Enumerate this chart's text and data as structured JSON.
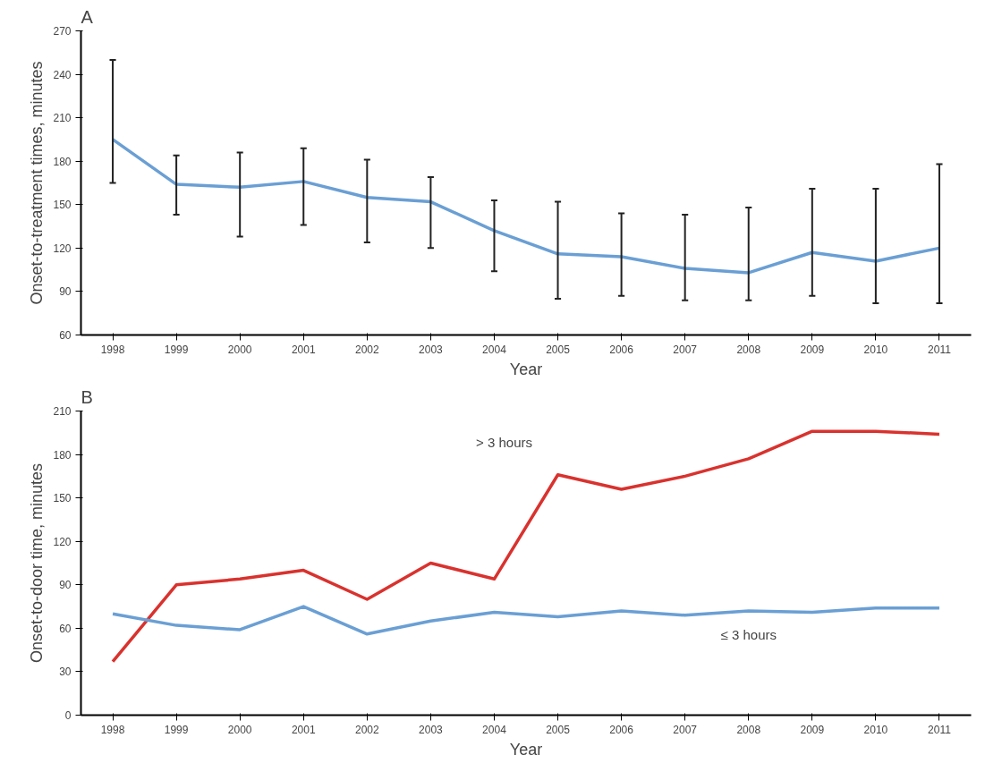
{
  "chart_data": [
    {
      "type": "line",
      "title": "A",
      "xlabel": "Year",
      "ylabel": "Onset-to-treatment times, minutes",
      "categories": [
        "1998",
        "1999",
        "2000",
        "2001",
        "2002",
        "2003",
        "2004",
        "2005",
        "2006",
        "2007",
        "2008",
        "2009",
        "2010",
        "2011"
      ],
      "series": [
        {
          "color": "#6a9fd4",
          "values": [
            195,
            164,
            162,
            166,
            155,
            152,
            132,
            116,
            114,
            106,
            103,
            117,
            111,
            120
          ],
          "errors": [
            [
              165,
              250
            ],
            [
              143,
              184
            ],
            [
              128,
              186
            ],
            [
              136,
              189
            ],
            [
              124,
              181
            ],
            [
              120,
              169
            ],
            [
              104,
              153
            ],
            [
              85,
              152
            ],
            [
              87,
              144
            ],
            [
              84,
              143
            ],
            [
              84,
              148
            ],
            [
              87,
              161
            ],
            [
              82,
              161
            ],
            [
              82,
              178
            ]
          ]
        }
      ],
      "ylim": [
        60,
        270
      ],
      "yticks": [
        60,
        90,
        120,
        150,
        180,
        210,
        240,
        270
      ],
      "grid": false
    },
    {
      "type": "line",
      "title": "B",
      "xlabel": "Year",
      "ylabel": "Onset-to-door time, minutes",
      "categories": [
        "1998",
        "1999",
        "2000",
        "2001",
        "2002",
        "2003",
        "2004",
        "2005",
        "2006",
        "2007",
        "2008",
        "2009",
        "2010",
        "2011"
      ],
      "series": [
        {
          "name": "> 3 hours",
          "color": "#d9322e",
          "values": [
            37,
            90,
            94,
            100,
            80,
            105,
            94,
            166,
            156,
            165,
            177,
            196,
            196,
            194
          ]
        },
        {
          "name": "≤ 3 hours",
          "color": "#6a9fd4",
          "values": [
            70,
            62,
            59,
            75,
            56,
            65,
            71,
            68,
            72,
            69,
            72,
            71,
            74,
            74
          ]
        }
      ],
      "ylim": [
        0,
        210
      ],
      "yticks": [
        0,
        30,
        60,
        90,
        120,
        150,
        180,
        210
      ],
      "grid": false
    }
  ]
}
